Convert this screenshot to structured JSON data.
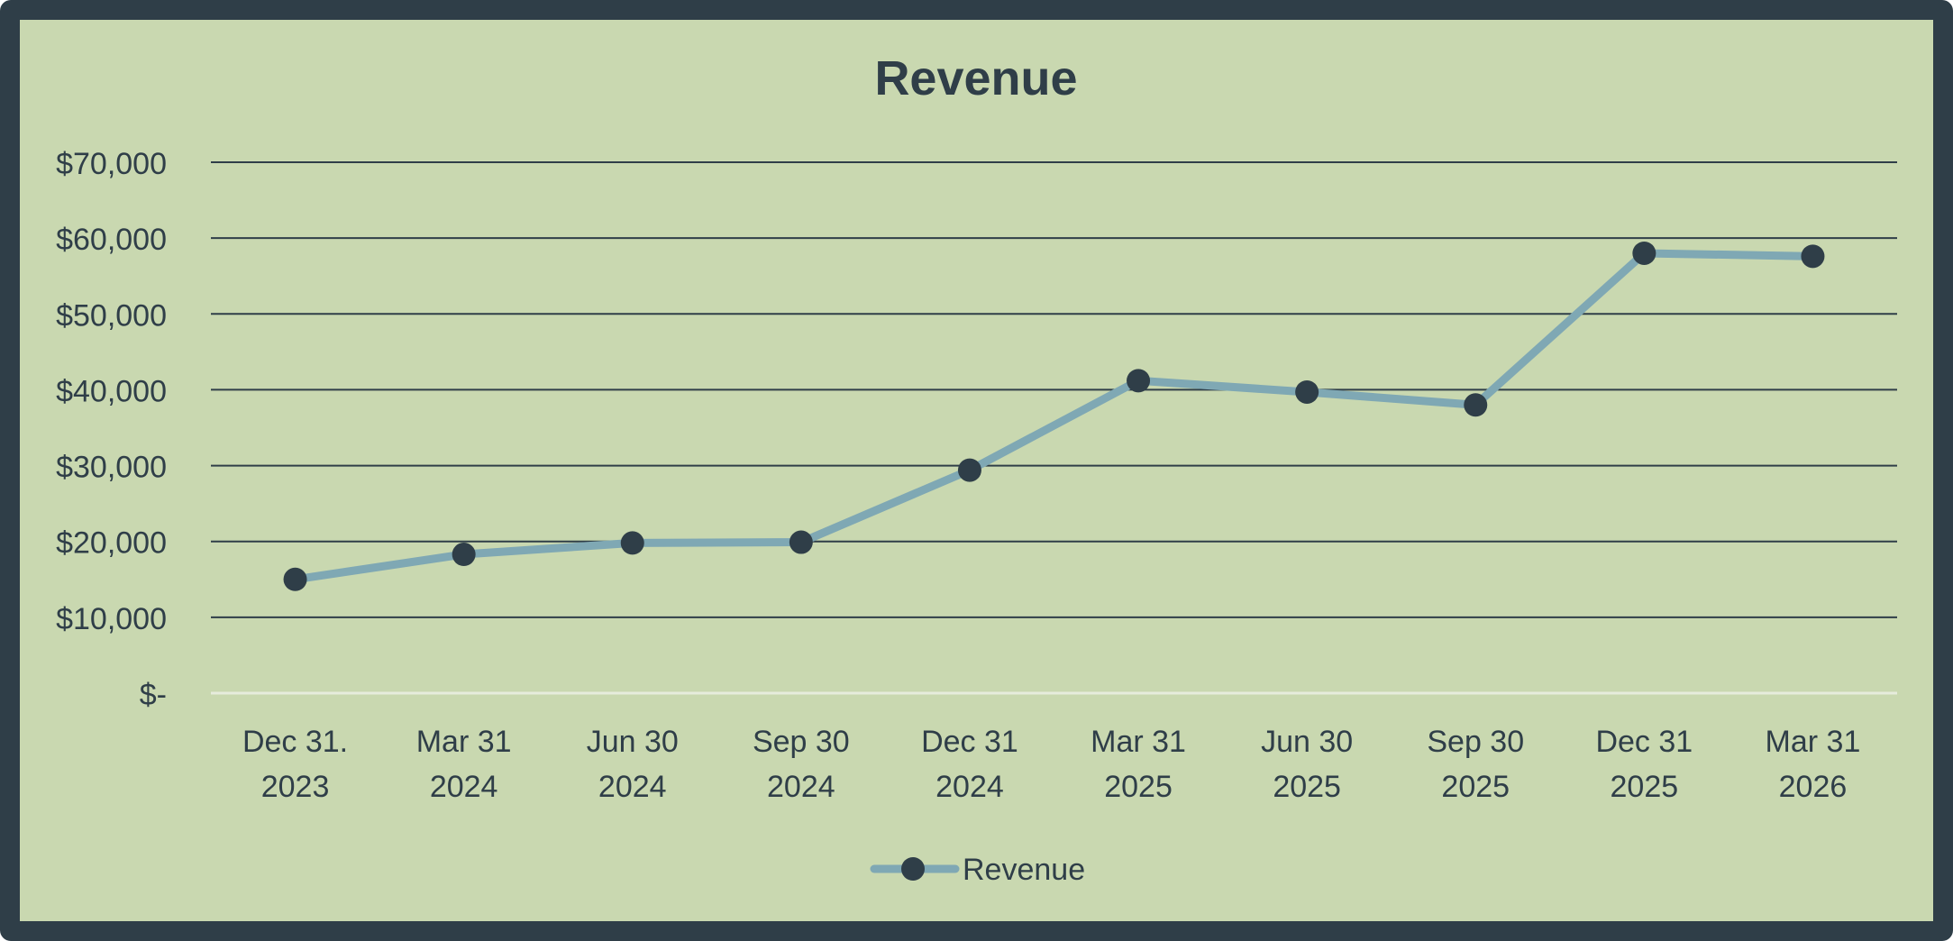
{
  "chart_data": {
    "type": "line",
    "title": "Revenue",
    "xlabel": "",
    "ylabel": "",
    "categories": [
      [
        "Dec 31.",
        "2023"
      ],
      [
        "Mar 31",
        "2024"
      ],
      [
        "Jun 30",
        "2024"
      ],
      [
        "Sep 30",
        "2024"
      ],
      [
        "Dec 31",
        "2024"
      ],
      [
        "Mar 31",
        "2025"
      ],
      [
        "Jun 30",
        "2025"
      ],
      [
        "Sep 30",
        "2025"
      ],
      [
        "Dec 31",
        "2025"
      ],
      [
        "Mar 31",
        "2026"
      ]
    ],
    "series": [
      {
        "name": "Revenue",
        "values": [
          15000,
          18300,
          19800,
          19900,
          29400,
          41200,
          39700,
          38000,
          58000,
          57600
        ]
      }
    ],
    "ylim": [
      0,
      70000
    ],
    "yticks": [
      0,
      10000,
      20000,
      30000,
      40000,
      50000,
      60000,
      70000
    ],
    "ytick_labels": [
      "$-",
      "$10,000",
      "$20,000",
      "$30,000",
      "$40,000",
      "$50,000",
      "$60,000",
      "$70,000"
    ],
    "grid": true,
    "legend": "bottom-center",
    "colors": {
      "background": "#c9d8b0",
      "frame": "#2f3e48",
      "line": "#7fa8b4",
      "marker": "#2f3e48",
      "gridline": "#2f3e48",
      "baseline": "#e6ecdc",
      "text": "#2f3e48"
    }
  }
}
